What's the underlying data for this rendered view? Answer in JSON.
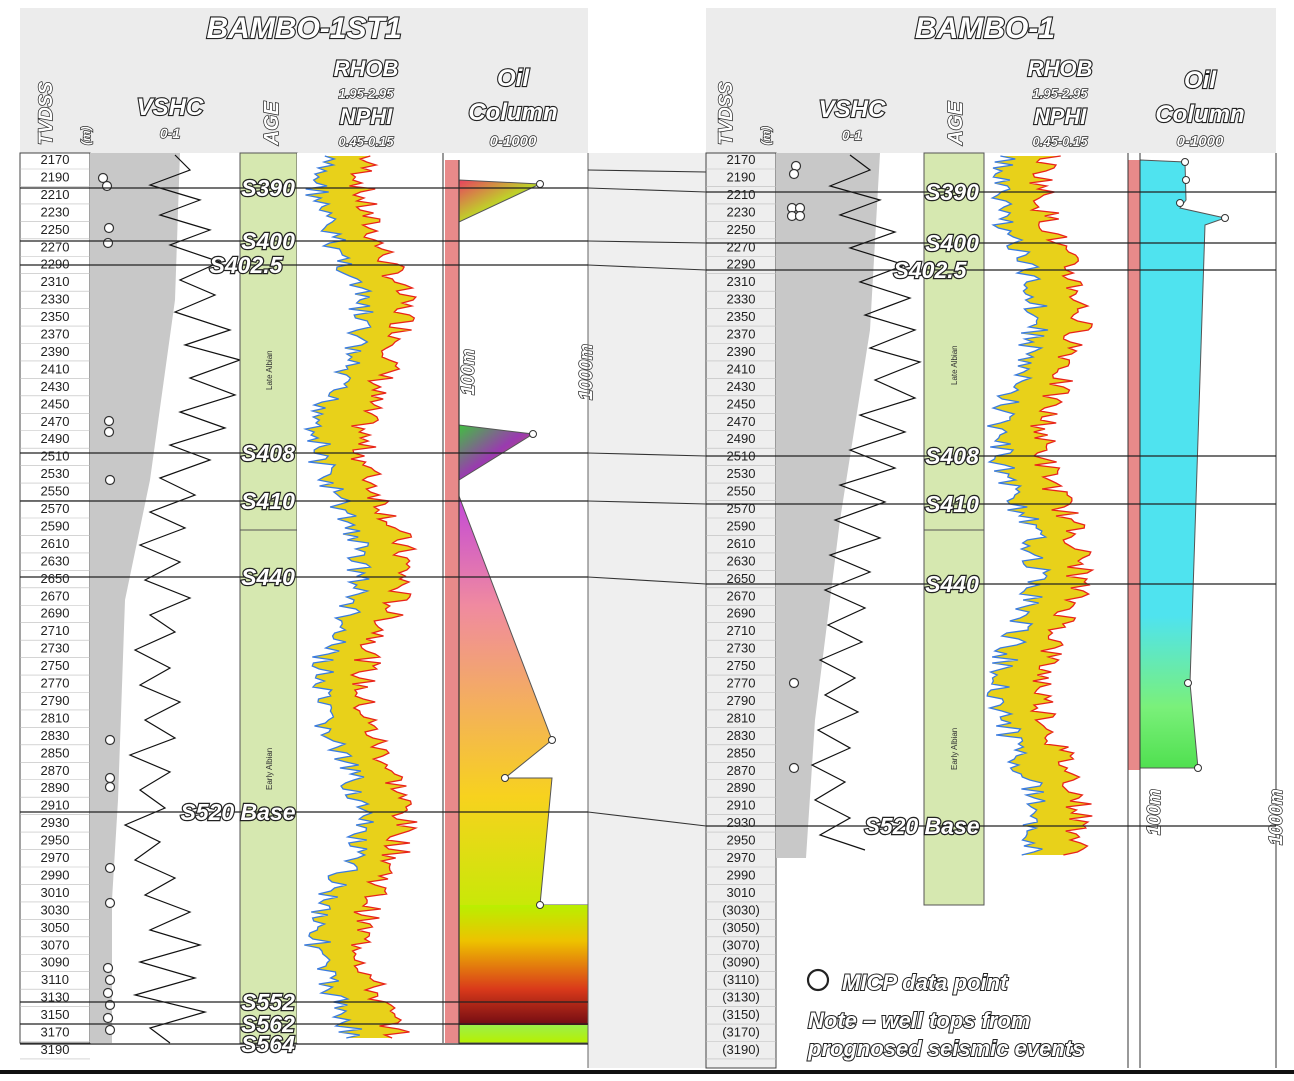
{
  "panels": [
    {
      "id": "left",
      "title": "BAMBO-1ST1",
      "track_labels": {
        "tvdss": "TVDSS",
        "tvdss_unit": "(m)",
        "vshc": "VSHC",
        "vshc_range": "0-1",
        "age": "AGE",
        "rhob": "RHOB",
        "rhob_range": "1.95-2.95",
        "nphi": "NPHI",
        "nphi_range": "0.45-0.15",
        "oil1": "Oil",
        "oil2": "Column",
        "oil_range": "0-1000"
      },
      "depths": [
        "2170",
        "2190",
        "2210",
        "2230",
        "2250",
        "2270",
        "2290",
        "2310",
        "2330",
        "2350",
        "2370",
        "2390",
        "2410",
        "2430",
        "2450",
        "2470",
        "2490",
        "2510",
        "2530",
        "2550",
        "2570",
        "2590",
        "2610",
        "2630",
        "2650",
        "2670",
        "2690",
        "2710",
        "2730",
        "2750",
        "2770",
        "2790",
        "2810",
        "2830",
        "2850",
        "2870",
        "2890",
        "2910",
        "2930",
        "2950",
        "2970",
        "2990",
        "3010",
        "3030",
        "3050",
        "3070",
        "3090",
        "3110",
        "3130",
        "3150",
        "3170",
        "3190"
      ],
      "tops": [
        "S390",
        "S400",
        "S402.5",
        "S408",
        "S410",
        "S440",
        "S520 Base",
        "S552",
        "S562",
        "S564"
      ],
      "age_labels": [
        "Late Albian",
        "Early Albian"
      ],
      "scale_labels": [
        "100m",
        "1000m"
      ]
    },
    {
      "id": "right",
      "title": "BAMBO-1",
      "track_labels": {
        "tvdss": "TVDSS",
        "tvdss_unit": "(m)",
        "vshc": "VSHC",
        "vshc_range": "0-1",
        "age": "AGE",
        "rhob": "RHOB",
        "rhob_range": "1.95-2.95",
        "nphi": "NPHI",
        "nphi_range": "0.45-0.15",
        "oil1": "Oil",
        "oil2": "Column",
        "oil_range": "0-1000"
      },
      "depths": [
        "2170",
        "2190",
        "2210",
        "2230",
        "2250",
        "2270",
        "2290",
        "2310",
        "2330",
        "2350",
        "2370",
        "2390",
        "2410",
        "2430",
        "2450",
        "2470",
        "2490",
        "2510",
        "2530",
        "2550",
        "2570",
        "2590",
        "2610",
        "2630",
        "2650",
        "2670",
        "2690",
        "2710",
        "2730",
        "2750",
        "2770",
        "2790",
        "2810",
        "2830",
        "2850",
        "2870",
        "2890",
        "2910",
        "2930",
        "2950",
        "2970",
        "2990",
        "3010",
        "(3030)",
        "(3050)",
        "(3070)",
        "(3090)",
        "(3110)",
        "(3130)",
        "(3150)",
        "(3170)",
        "(3190)"
      ],
      "tops": [
        "S390",
        "S400",
        "S402.5",
        "S408",
        "S410",
        "S440",
        "S520 Base"
      ],
      "age_labels": [
        "Late Albian",
        "Early Albian"
      ],
      "scale_labels": [
        "100m",
        "1000m"
      ]
    }
  ],
  "legend": {
    "micp": "MICP data point",
    "note_line1": "Note – well tops from",
    "note_line2": "prognosed seismic events"
  },
  "colors": {
    "header_bg": "#ececec",
    "vshc_fill": "#c8c8c8",
    "age_fill": "#d6e8b0",
    "rhob": "#e8231a",
    "nphi": "#3a7be0",
    "crossover": "#e8d11a",
    "oil_bar": "#e88a8a",
    "right_oil": "#4fe3ef"
  }
}
